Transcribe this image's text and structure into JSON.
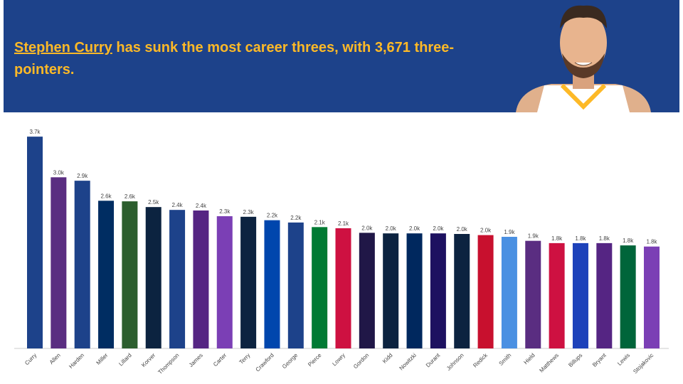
{
  "header": {
    "title_link": "Stephen Curry",
    "title_rest": "has sunk the most career threes, with 3,671 three-pointers."
  },
  "chart_data": {
    "type": "bar",
    "categories": [
      "Curry",
      "Allen",
      "Harden",
      "Miller",
      "Lillard",
      "Korver",
      "Thompson",
      "James",
      "Carter",
      "Terry",
      "Crawford",
      "George",
      "Pierce",
      "Lowry",
      "Gordon",
      "Kidd",
      "Nowitzki",
      "Durant",
      "Johnson",
      "Redick",
      "Smith",
      "Hield",
      "Matthews",
      "Billups",
      "Bryant",
      "Lewis",
      "Stojakovic"
    ],
    "values": [
      3.7,
      2.99,
      2.93,
      2.58,
      2.57,
      2.47,
      2.42,
      2.41,
      2.31,
      2.3,
      2.24,
      2.2,
      2.12,
      2.1,
      2.02,
      2.01,
      2.01,
      2.01,
      2.0,
      1.98,
      1.95,
      1.88,
      1.84,
      1.84,
      1.84,
      1.8,
      1.78
    ],
    "value_labels": [
      "3.7k",
      "3.0k",
      "2.9k",
      "2.6k",
      "2.6k",
      "2.5k",
      "2.4k",
      "2.4k",
      "2.3k",
      "2.3k",
      "2.2k",
      "2.2k",
      "2.1k",
      "2.1k",
      "2.0k",
      "2.0k",
      "2.0k",
      "2.0k",
      "2.0k",
      "2.0k",
      "1.9k",
      "1.9k",
      "1.8k",
      "1.8k",
      "1.8k",
      "1.8k",
      "1.8k"
    ],
    "colors": [
      "#1d428a",
      "#5a2d81",
      "#1d428a",
      "#002d62",
      "#2c5e2e",
      "#0c2340",
      "#1d428a",
      "#552583",
      "#7b3fb5",
      "#0c2340",
      "#0046ad",
      "#1d428a",
      "#007a33",
      "#ce1141",
      "#201747",
      "#0c2340",
      "#00285e",
      "#1d1160",
      "#0c2340",
      "#c8102e",
      "#4a90e2",
      "#5a2d81",
      "#ce1141",
      "#1d42ba",
      "#552583",
      "#00653a",
      "#7b3fb5"
    ]
  }
}
